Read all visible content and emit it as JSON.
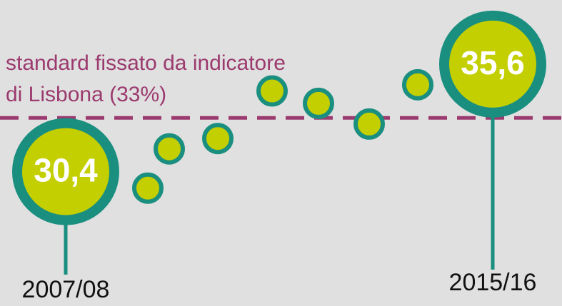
{
  "chart_data": {
    "type": "dot",
    "annotation": [
      "standard fissato da indicatore",
      "di Lisbona (33%)"
    ],
    "reference_line": 33,
    "categories": [
      "2007/08",
      null,
      null,
      null,
      null,
      null,
      null,
      null,
      "2015/16"
    ],
    "values": [
      30.4,
      29.6,
      31.5,
      32.0,
      34.3,
      33.7,
      32.7,
      34.6,
      35.6
    ],
    "value_labels": [
      "30,4",
      null,
      null,
      null,
      null,
      null,
      null,
      null,
      "35,6"
    ],
    "ylim": [
      23.9,
      38.7
    ],
    "colors": {
      "fill": "#c3cf00",
      "ring": "#1a8f80",
      "reference": "#9b3a6e"
    }
  }
}
